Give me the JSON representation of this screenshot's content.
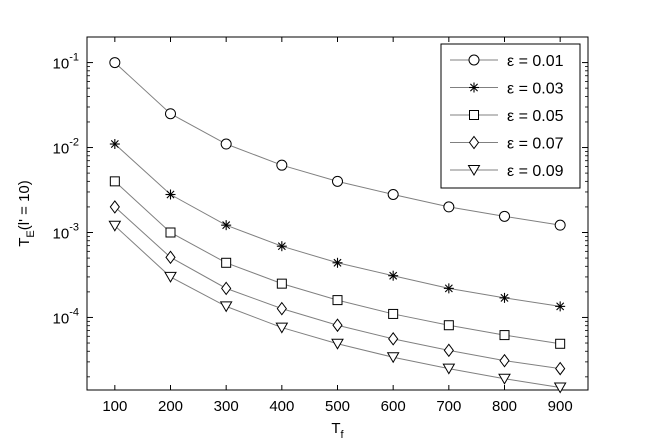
{
  "chart_data": {
    "type": "line",
    "xlabel": "T",
    "xlabel_sub": "f",
    "ylabel": "T",
    "ylabel_sub": "E",
    "ylabel_rest": "(l' = 10)",
    "x": [
      100,
      200,
      300,
      400,
      500,
      600,
      700,
      800,
      900
    ],
    "xticks": [
      100,
      200,
      300,
      400,
      500,
      600,
      700,
      800,
      900
    ],
    "xlim": [
      50,
      950
    ],
    "yscale": "log",
    "ylim": [
      1.4e-05,
      0.2
    ],
    "yticks": [
      {
        "value": 0.1,
        "base": "10",
        "exp": "-1"
      },
      {
        "value": 0.01,
        "base": "10",
        "exp": "-2"
      },
      {
        "value": 0.001,
        "base": "10",
        "exp": "-3"
      },
      {
        "value": 0.0001,
        "base": "10",
        "exp": "-4"
      }
    ],
    "grid": false,
    "legend_position": "top-right",
    "line_color": "#808080",
    "marker_color": "#000000",
    "series": [
      {
        "name": "ε = 0.01",
        "marker": "circle",
        "values": [
          0.1,
          0.025,
          0.011,
          0.0062,
          0.004,
          0.0028,
          0.002,
          0.00155,
          0.00122
        ]
      },
      {
        "name": "ε = 0.03",
        "marker": "asterisk",
        "values": [
          0.011,
          0.0028,
          0.00122,
          0.00069,
          0.00044,
          0.00031,
          0.00022,
          0.00017,
          0.000135
        ]
      },
      {
        "name": "ε = 0.05",
        "marker": "square",
        "values": [
          0.004,
          0.001,
          0.00044,
          0.00025,
          0.00016,
          0.00011,
          8.1e-05,
          6.2e-05,
          4.9e-05
        ]
      },
      {
        "name": "ε = 0.07",
        "marker": "diamond",
        "values": [
          0.002,
          0.00051,
          0.00022,
          0.000127,
          8.1e-05,
          5.6e-05,
          4.1e-05,
          3.1e-05,
          2.5e-05
        ]
      },
      {
        "name": "ε = 0.09",
        "marker": "triangle-down",
        "values": [
          0.0012,
          0.0003,
          0.000135,
          7.6e-05,
          4.9e-05,
          3.4e-05,
          2.5e-05,
          1.9e-05,
          1.5e-05
        ]
      }
    ]
  }
}
